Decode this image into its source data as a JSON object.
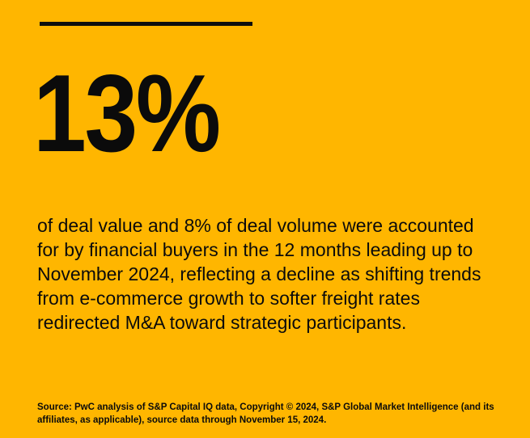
{
  "colors": {
    "background": "#FFB600",
    "ink": "#0b0b0b",
    "rule": "#0e0e0e"
  },
  "headline": {
    "value": "13%"
  },
  "body": {
    "lines": [
      "of deal value and 8% of deal volume were accounted",
      "for by financial buyers in the 12 months leading up to",
      "November 2024, reflecting a decline as shifting trends",
      "from e-commerce growth to softer freight rates",
      "redirected M&A toward strategic participants."
    ]
  },
  "source": {
    "lines": [
      "Source: PwC analysis of S&P Capital IQ data, Copyright © 2024, S&P Global Market Intelligence (and its",
      "affiliates, as applicable), source data through November 15, 2024."
    ]
  }
}
